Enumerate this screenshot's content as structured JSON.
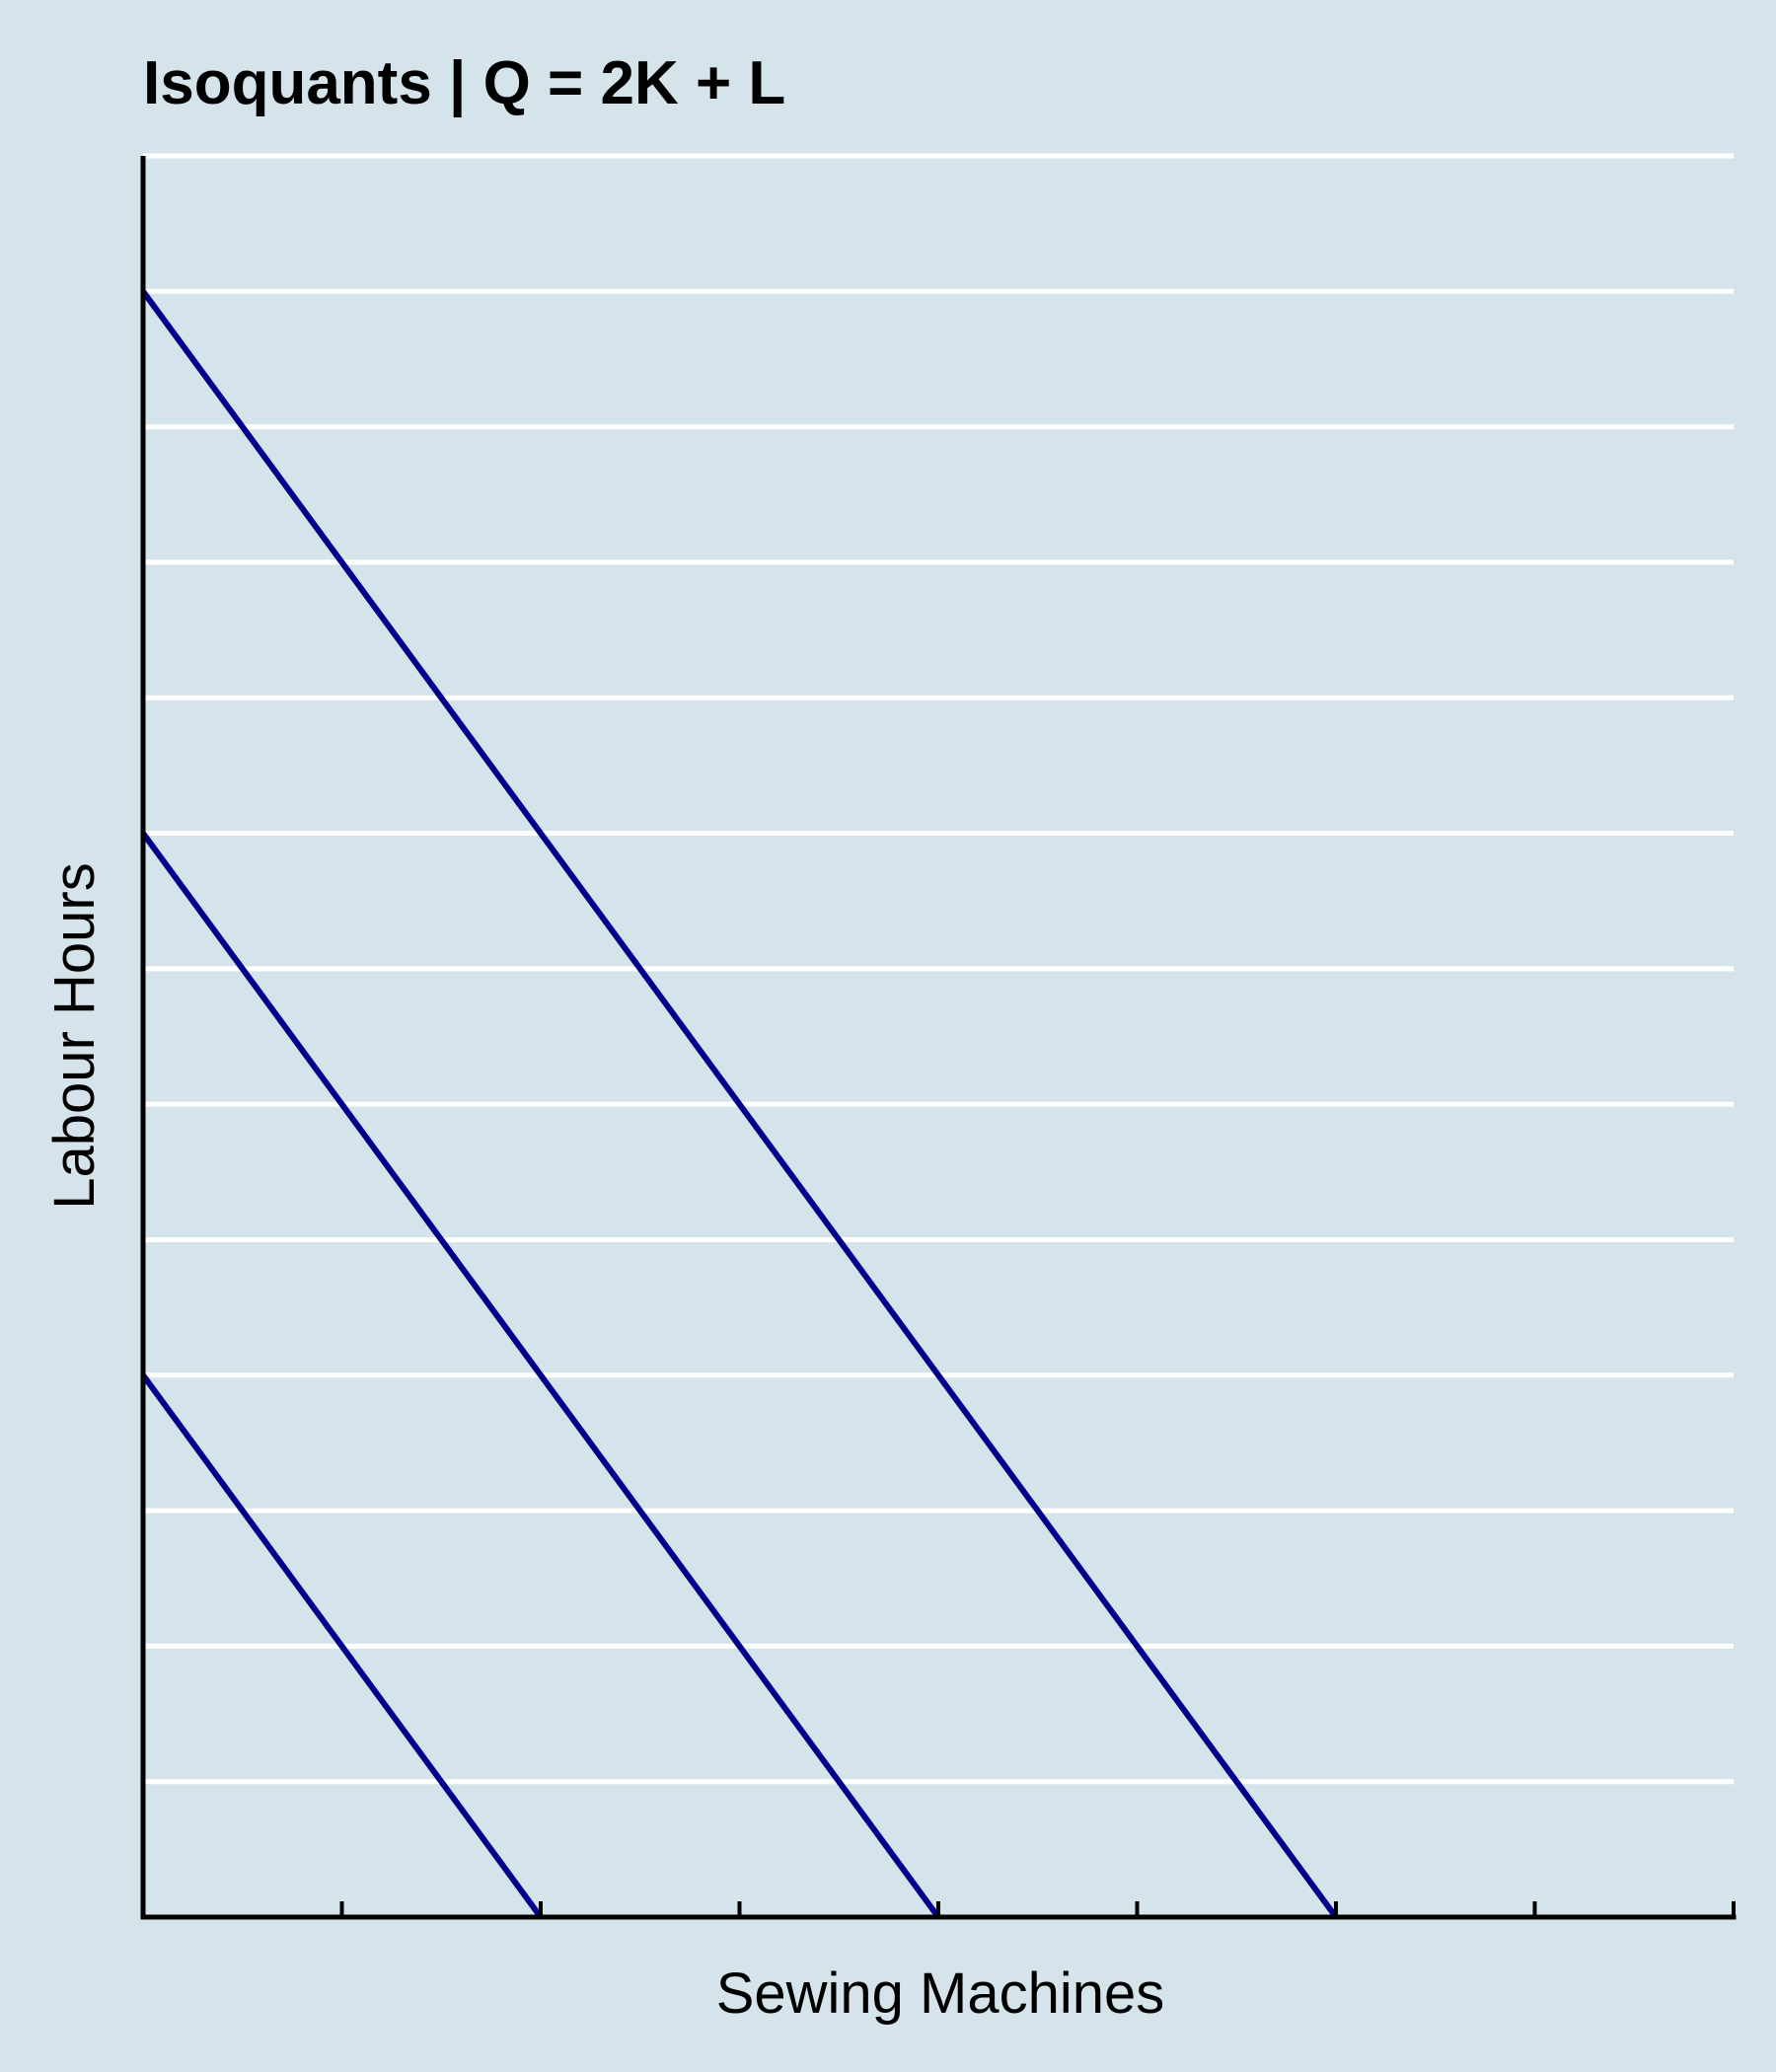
{
  "chart_data": {
    "type": "line",
    "title": "Isoquants | Q = 2K + L",
    "xlabel": "Sewing Machines",
    "ylabel": "Labour Hours",
    "xlim": [
      0,
      8
    ],
    "ylim": [
      0,
      13
    ],
    "grid": "horizontal",
    "x_ticks": [
      0,
      1,
      2,
      3,
      4,
      5,
      6,
      7,
      8
    ],
    "y_gridlines": [
      1,
      2,
      3,
      4,
      5,
      6,
      7,
      8,
      9,
      10,
      11,
      12,
      13
    ],
    "series": [
      {
        "x": [
          0,
          2
        ],
        "y": [
          4,
          0
        ]
      },
      {
        "x": [
          0,
          4
        ],
        "y": [
          8,
          0
        ]
      },
      {
        "x": [
          0,
          6
        ],
        "y": [
          12,
          0
        ]
      }
    ]
  },
  "colors": {
    "background": "#d5e4eb",
    "gridline": "#ffffff",
    "axis": "#000000",
    "series": "#00008b"
  }
}
